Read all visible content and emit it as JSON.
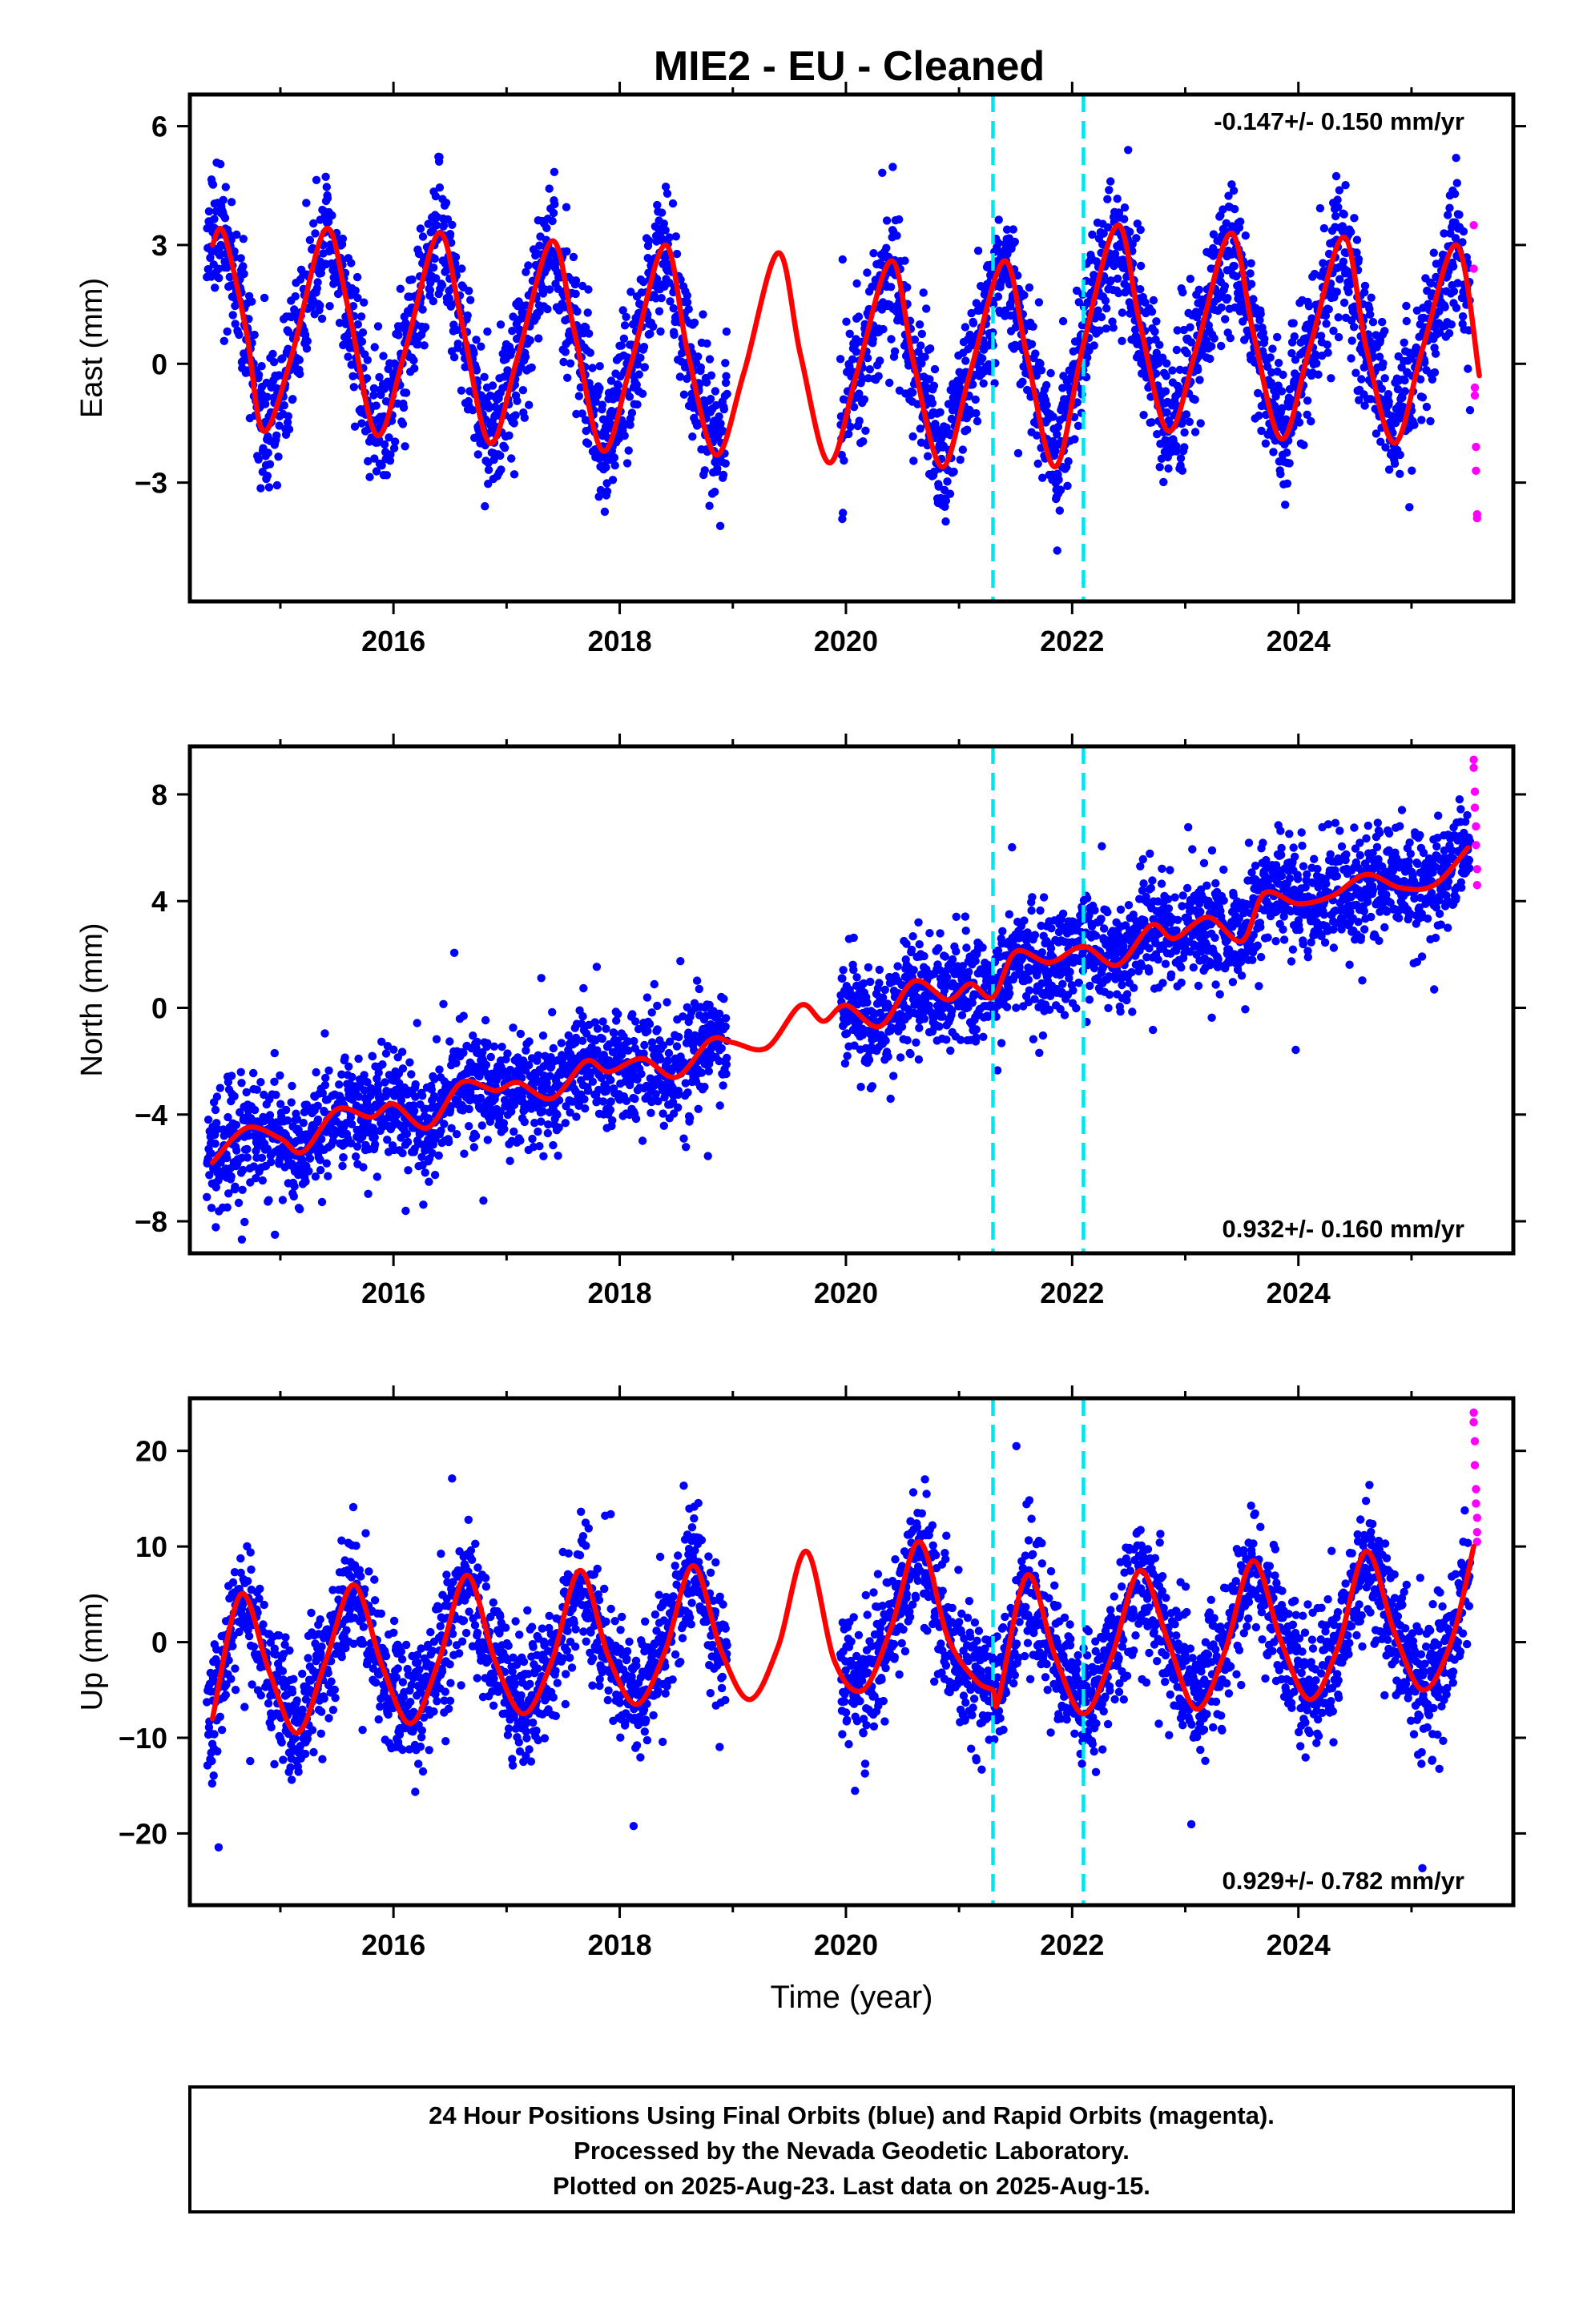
{
  "title": "MIE2  - EU - Cleaned",
  "colors": {
    "final_orbit_points": "#0000ff",
    "rapid_orbit_points": "#ff00ff",
    "model_curve": "#ff0000",
    "event_lines": "#00e5ee",
    "frame": "#000000"
  },
  "chart_data": [
    {
      "type": "scatter",
      "component": "East",
      "ylabel": "East (mm)",
      "xlabel": "",
      "xlim": [
        2014.2,
        2025.9
      ],
      "ylim": [
        -6.0,
        6.8
      ],
      "xticks": [
        2016,
        2018,
        2020,
        2022,
        2024
      ],
      "yticks": [
        6,
        3,
        0,
        -3
      ],
      "ytick_labels": [
        "6",
        "3",
        "0",
        "−3"
      ],
      "rate": "-0.147+/- 0.150 mm/yr",
      "rate_position": "top-right",
      "event_lines": [
        2021.3,
        2022.1
      ],
      "gaps": [
        [
          2018.95,
          2019.95
        ]
      ],
      "series": [
        {
          "name": "Final Orbits (blue)",
          "data_start": 2014.35,
          "data_end": 2025.52,
          "spread_mm": 0.85,
          "seed": 11
        },
        {
          "name": "Rapid Orbits (magenta)",
          "x": [
            2025.55,
            2025.55,
            2025.56,
            2025.56,
            2025.57,
            2025.57,
            2025.58,
            2025.58
          ],
          "y": [
            3.5,
            2.4,
            -0.6,
            -0.8,
            -2.1,
            -2.7,
            -3.8,
            -3.9
          ]
        }
      ],
      "model": {
        "name": "Model",
        "x": [
          2014.4,
          2014.5,
          2014.7,
          2014.85,
          2015.1,
          2015.4,
          2015.6,
          2015.85,
          2016.1,
          2016.4,
          2016.6,
          2016.85,
          2017.1,
          2017.4,
          2017.6,
          2017.85,
          2018.1,
          2018.4,
          2018.6,
          2018.85,
          2019.1,
          2019.4,
          2019.6,
          2019.85,
          2020.1,
          2020.4,
          2020.6,
          2020.85,
          2021.1,
          2021.4,
          2021.6,
          2021.85,
          2022.1,
          2022.4,
          2022.6,
          2022.85,
          2023.1,
          2023.4,
          2023.6,
          2023.85,
          2024.1,
          2024.4,
          2024.6,
          2024.85,
          2025.1,
          2025.4,
          2025.6
        ],
        "y": [
          3.0,
          3.3,
          0.8,
          -1.7,
          0.2,
          3.4,
          1.4,
          -1.8,
          0.3,
          3.3,
          1.1,
          -2.0,
          0.2,
          3.1,
          0.8,
          -2.2,
          0.0,
          3.0,
          0.3,
          -2.3,
          -0.2,
          2.8,
          0.2,
          -2.5,
          -0.2,
          2.6,
          0.0,
          -2.6,
          -0.2,
          2.6,
          0.2,
          -2.6,
          0.5,
          3.5,
          1.0,
          -1.7,
          0.4,
          3.3,
          0.8,
          -1.9,
          0.4,
          3.2,
          0.4,
          -2.0,
          0.4,
          3.0,
          -0.3
        ]
      }
    },
    {
      "type": "scatter",
      "component": "North",
      "ylabel": "North (mm)",
      "xlabel": "",
      "xlim": [
        2014.2,
        2025.9
      ],
      "ylim": [
        -9.2,
        9.8
      ],
      "xticks": [
        2016,
        2018,
        2020,
        2022,
        2024
      ],
      "yticks": [
        8,
        4,
        0,
        -4,
        -8
      ],
      "ytick_labels": [
        "8",
        "4",
        "0",
        "−4",
        "−8"
      ],
      "rate": "0.932+/- 0.160 mm/yr",
      "rate_position": "bottom-right",
      "event_lines": [
        2021.3,
        2022.1
      ],
      "gaps": [
        [
          2018.95,
          2019.95
        ]
      ],
      "series": [
        {
          "name": "Final Orbits (blue)",
          "data_start": 2014.35,
          "data_end": 2025.52,
          "spread_mm": 1.0,
          "seed": 23
        },
        {
          "name": "Rapid Orbits (magenta)",
          "x": [
            2025.55,
            2025.55,
            2025.56,
            2025.56,
            2025.57,
            2025.57,
            2025.58,
            2025.58
          ],
          "y": [
            9.3,
            9.0,
            8.1,
            7.5,
            6.8,
            6.1,
            5.2,
            4.6
          ]
        }
      ],
      "model": {
        "name": "Model",
        "x": [
          2014.4,
          2014.7,
          2015.0,
          2015.2,
          2015.5,
          2015.8,
          2016.0,
          2016.3,
          2016.6,
          2016.9,
          2017.1,
          2017.4,
          2017.7,
          2017.9,
          2018.2,
          2018.5,
          2018.8,
          2019.0,
          2019.3,
          2019.6,
          2019.8,
          2020.0,
          2020.3,
          2020.6,
          2020.9,
          2021.1,
          2021.3,
          2021.5,
          2021.8,
          2022.1,
          2022.4,
          2022.7,
          2022.9,
          2023.2,
          2023.5,
          2023.7,
          2024.0,
          2024.3,
          2024.6,
          2024.9,
          2025.2,
          2025.5
        ],
        "y": [
          -5.8,
          -4.5,
          -4.9,
          -5.4,
          -3.8,
          -4.1,
          -3.6,
          -4.5,
          -2.8,
          -3.1,
          -2.8,
          -3.4,
          -2.0,
          -2.4,
          -1.9,
          -2.6,
          -1.2,
          -1.3,
          -1.5,
          0.1,
          -0.5,
          0.1,
          -0.7,
          1.0,
          0.3,
          0.9,
          0.4,
          2.1,
          1.7,
          2.3,
          1.6,
          3.1,
          2.6,
          3.4,
          2.5,
          4.3,
          3.9,
          4.2,
          5.0,
          4.5,
          4.6,
          6.0
        ]
      }
    },
    {
      "type": "scatter",
      "component": "Up",
      "ylabel": "Up (mm)",
      "xlabel": "Time (year)",
      "xlim": [
        2014.2,
        2025.9
      ],
      "ylim": [
        -27.5,
        25.5
      ],
      "xticks": [
        2016,
        2018,
        2020,
        2022,
        2024
      ],
      "yticks": [
        20,
        10,
        0,
        -10,
        -20
      ],
      "ytick_labels": [
        "20",
        "10",
        "0",
        "−10",
        "−20"
      ],
      "rate": "0.929+/- 0.782 mm/yr",
      "rate_position": "bottom-right",
      "event_lines": [
        2021.3,
        2022.1
      ],
      "gaps": [
        [
          2018.95,
          2019.95
        ]
      ],
      "series": [
        {
          "name": "Final Orbits (blue)",
          "data_start": 2014.35,
          "data_end": 2025.52,
          "spread_mm": 3.2,
          "seed": 37
        },
        {
          "name": "Rapid Orbits (magenta)",
          "x": [
            2025.55,
            2025.55,
            2025.56,
            2025.56,
            2025.57,
            2025.57,
            2025.58,
            2025.58,
            2025.58
          ],
          "y": [
            24.0,
            23.0,
            21.0,
            18.5,
            16.0,
            14.5,
            13.0,
            11.5,
            10.5
          ]
        }
      ],
      "model": {
        "name": "Model",
        "x": [
          2014.4,
          2014.65,
          2014.9,
          2015.15,
          2015.4,
          2015.65,
          2015.9,
          2016.15,
          2016.4,
          2016.65,
          2016.9,
          2017.15,
          2017.4,
          2017.65,
          2017.9,
          2018.15,
          2018.4,
          2018.65,
          2018.9,
          2019.15,
          2019.4,
          2019.65,
          2019.9,
          2020.15,
          2020.4,
          2020.65,
          2020.9,
          2021.15,
          2021.3,
          2021.35,
          2021.6,
          2021.85,
          2022.1,
          2022.35,
          2022.6,
          2022.85,
          2023.1,
          2023.35,
          2023.6,
          2023.85,
          2024.1,
          2024.35,
          2024.6,
          2024.85,
          2025.1,
          2025.35,
          2025.55
        ],
        "y": [
          -8.0,
          5.0,
          -3.0,
          -9.5,
          -2.0,
          6.0,
          -2.5,
          -8.5,
          -2.0,
          7.0,
          -2.0,
          -7.5,
          -2.0,
          7.5,
          -1.5,
          -6.5,
          -1.0,
          8.0,
          -1.0,
          -6.0,
          -0.5,
          9.5,
          -2.0,
          -5.0,
          1.5,
          10.5,
          0.5,
          -4.0,
          -5.0,
          -6.0,
          7.0,
          -1.5,
          -7.5,
          -1.5,
          7.5,
          0.0,
          -7.0,
          -1.0,
          8.5,
          0.0,
          -6.0,
          -0.5,
          9.5,
          1.0,
          -5.0,
          0.0,
          10.0
        ]
      }
    }
  ],
  "caption": {
    "line1": "24 Hour Positions Using Final Orbits (blue) and Rapid Orbits (magenta).",
    "line2": "Processed by the Nevada Geodetic Laboratory.",
    "line3": "Plotted on 2025-Aug-23. Last data on 2025-Aug-15."
  }
}
